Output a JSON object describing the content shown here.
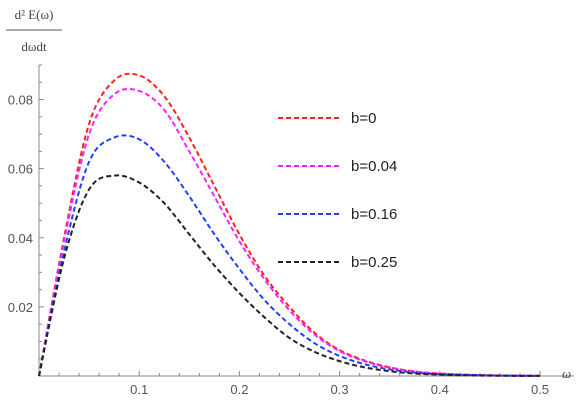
{
  "chart_data": {
    "type": "line",
    "xlabel": "ω",
    "ylabel": {
      "numerator": "d² E(ω)",
      "denominator": "dωdt"
    },
    "xlim": [
      0,
      0.5
    ],
    "ylim": [
      0,
      0.09
    ],
    "x_ticks": [
      "0.1",
      "0.2",
      "0.3",
      "0.4",
      "0.5"
    ],
    "y_ticks": [
      "0.02",
      "0.04",
      "0.06",
      "0.08"
    ],
    "x_tick_values": [
      0.1,
      0.2,
      0.3,
      0.4,
      0.5
    ],
    "y_tick_values": [
      0.02,
      0.04,
      0.06,
      0.08
    ],
    "grid": false,
    "legend_position": "top-right",
    "line_style": "dashed",
    "x": [
      0,
      0.025,
      0.05,
      0.075,
      0.1,
      0.125,
      0.15,
      0.175,
      0.2,
      0.225,
      0.25,
      0.275,
      0.3,
      0.325,
      0.35,
      0.375,
      0.4,
      0.425,
      0.45,
      0.475,
      0.5
    ],
    "series": [
      {
        "name": "b=0",
        "color": "#ff2020",
        "values": [
          0,
          0.04,
          0.073,
          0.0855,
          0.087,
          0.081,
          0.069,
          0.055,
          0.041,
          0.029,
          0.02,
          0.0125,
          0.0075,
          0.0045,
          0.0025,
          0.0013,
          0.0007,
          0.0004,
          0.0002,
          0.0001,
          5e-05
        ]
      },
      {
        "name": "b=0.04",
        "color": "#ff20ff",
        "values": [
          0,
          0.039,
          0.07,
          0.0815,
          0.0825,
          0.077,
          0.065,
          0.052,
          0.039,
          0.028,
          0.019,
          0.012,
          0.0072,
          0.0043,
          0.0024,
          0.0013,
          0.0007,
          0.0004,
          0.0002,
          0.0001,
          5e-05
        ]
      },
      {
        "name": "b=0.16",
        "color": "#2040ff",
        "values": [
          0,
          0.036,
          0.062,
          0.069,
          0.0685,
          0.062,
          0.052,
          0.041,
          0.031,
          0.022,
          0.015,
          0.0095,
          0.0058,
          0.0034,
          0.0019,
          0.001,
          0.0005,
          0.0003,
          0.00015,
          8e-05,
          4e-05
        ]
      },
      {
        "name": "b=0.25",
        "color": "#222222",
        "values": [
          0,
          0.034,
          0.054,
          0.058,
          0.056,
          0.05,
          0.041,
          0.032,
          0.024,
          0.017,
          0.011,
          0.007,
          0.0043,
          0.0025,
          0.0014,
          0.0007,
          0.0004,
          0.0002,
          0.0001,
          5e-05,
          2e-05
        ]
      }
    ]
  }
}
